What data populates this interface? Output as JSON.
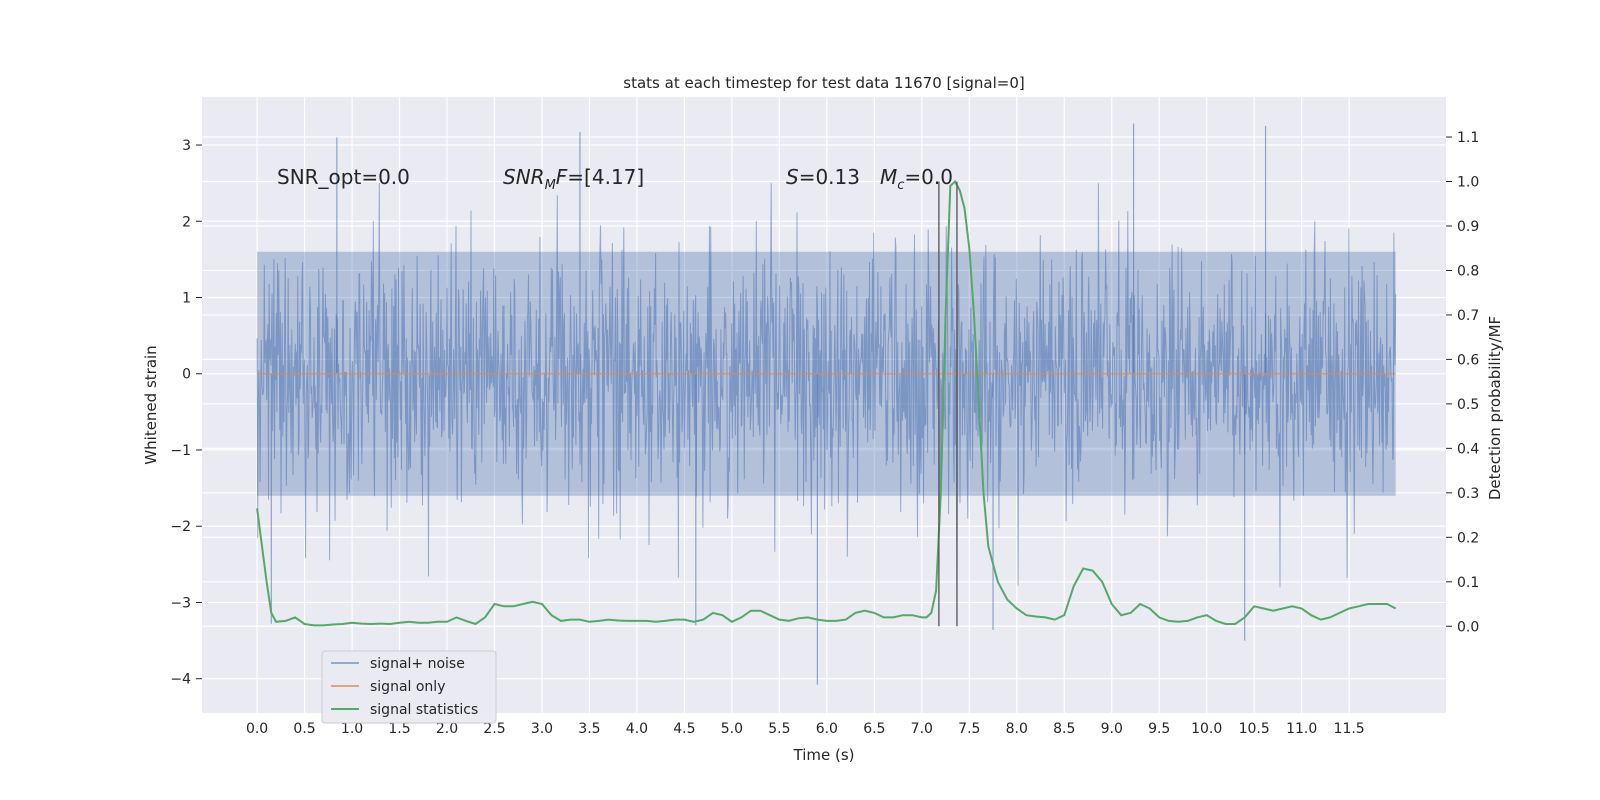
{
  "chart_data": {
    "type": "line",
    "title": "stats at each timestep for test data 11670 [signal=0]",
    "xlabel": "Time (s)",
    "ylabel_left": "Whitened strain",
    "ylabel_right": "Detection probability/MF",
    "xlim": [
      -0.58,
      12.52
    ],
    "ylim_left": [
      -4.45,
      3.63
    ],
    "ylim_right": [
      -0.195,
      1.19
    ],
    "x_ticks": [
      "0.0",
      "0.5",
      "1.0",
      "1.5",
      "2.0",
      "2.5",
      "3.0",
      "3.5",
      "4.0",
      "4.5",
      "5.0",
      "5.5",
      "6.0",
      "6.5",
      "7.0",
      "7.5",
      "8.0",
      "8.5",
      "9.0",
      "9.5",
      "10.0",
      "10.5",
      "11.0",
      "11.5"
    ],
    "y_ticks_left": [
      "3",
      "2",
      "1",
      "0",
      "−1",
      "−2",
      "−3",
      "−4"
    ],
    "y_ticks_right": [
      "1.1",
      "1.0",
      "0.9",
      "0.8",
      "0.7",
      "0.6",
      "0.5",
      "0.4",
      "0.3",
      "0.2",
      "0.1",
      "0.0"
    ],
    "grid": true,
    "legend_position": "lower-left",
    "annotations": {
      "snr_opt": "SNR_opt=0.0",
      "snr_mf": "=[4.17]",
      "s_value": "=0.13",
      "mc_value": "=0.0"
    },
    "vertical_lines_x": [
      7.18,
      7.37
    ],
    "series": [
      {
        "name": "signal+ noise",
        "color": "#4c72b0",
        "axis": "left",
        "kind": "noise",
        "x_range": [
          0.0,
          11.99
        ],
        "typical_band": [
          -1.6,
          1.6
        ],
        "extremes": [
          {
            "x": 0.84,
            "y": 3.1
          },
          {
            "x": 3.4,
            "y": 3.17
          },
          {
            "x": 9.23,
            "y": 3.28
          },
          {
            "x": 10.62,
            "y": 3.25
          },
          {
            "x": 5.9,
            "y": -4.08
          },
          {
            "x": 10.4,
            "y": -3.5
          },
          {
            "x": 7.75,
            "y": -3.36
          },
          {
            "x": 0.15,
            "y": -3.28
          },
          {
            "x": 4.62,
            "y": -3.3
          }
        ]
      },
      {
        "name": "signal only",
        "color": "#dd8452",
        "axis": "left",
        "x": [
          0.0,
          11.99
        ],
        "y": [
          0.0,
          0.0
        ]
      },
      {
        "name": "signal statistics",
        "color": "#55a868",
        "axis": "right",
        "x": [
          0.0,
          0.1,
          0.15,
          0.2,
          0.3,
          0.4,
          0.5,
          0.6,
          0.7,
          0.8,
          0.9,
          1.0,
          1.1,
          1.2,
          1.3,
          1.4,
          1.5,
          1.6,
          1.7,
          1.8,
          1.9,
          2.0,
          2.1,
          2.2,
          2.3,
          2.4,
          2.5,
          2.6,
          2.7,
          2.8,
          2.9,
          3.0,
          3.1,
          3.2,
          3.3,
          3.4,
          3.5,
          3.6,
          3.7,
          3.8,
          3.9,
          4.0,
          4.1,
          4.2,
          4.3,
          4.4,
          4.5,
          4.6,
          4.7,
          4.8,
          4.9,
          5.0,
          5.1,
          5.2,
          5.3,
          5.4,
          5.5,
          5.6,
          5.7,
          5.8,
          5.9,
          6.0,
          6.1,
          6.2,
          6.3,
          6.4,
          6.5,
          6.6,
          6.7,
          6.8,
          6.9,
          7.0,
          7.05,
          7.1,
          7.15,
          7.2,
          7.25,
          7.3,
          7.35,
          7.4,
          7.45,
          7.5,
          7.55,
          7.6,
          7.65,
          7.7,
          7.8,
          7.9,
          8.0,
          8.1,
          8.2,
          8.3,
          8.4,
          8.5,
          8.6,
          8.7,
          8.8,
          8.9,
          9.0,
          9.1,
          9.2,
          9.3,
          9.4,
          9.5,
          9.6,
          9.7,
          9.8,
          9.9,
          10.0,
          10.1,
          10.2,
          10.3,
          10.4,
          10.5,
          10.6,
          10.7,
          10.8,
          10.9,
          11.0,
          11.1,
          11.2,
          11.3,
          11.4,
          11.5,
          11.6,
          11.7,
          11.8,
          11.9,
          11.99
        ],
        "y": [
          0.265,
          0.1,
          0.03,
          0.01,
          0.012,
          0.02,
          0.005,
          0.002,
          0.002,
          0.004,
          0.005,
          0.008,
          0.006,
          0.005,
          0.006,
          0.005,
          0.008,
          0.01,
          0.008,
          0.008,
          0.01,
          0.01,
          0.02,
          0.012,
          0.005,
          0.02,
          0.05,
          0.045,
          0.045,
          0.05,
          0.055,
          0.05,
          0.025,
          0.012,
          0.015,
          0.015,
          0.01,
          0.012,
          0.015,
          0.013,
          0.012,
          0.012,
          0.012,
          0.01,
          0.012,
          0.015,
          0.015,
          0.01,
          0.015,
          0.03,
          0.025,
          0.01,
          0.02,
          0.035,
          0.035,
          0.025,
          0.015,
          0.012,
          0.018,
          0.02,
          0.015,
          0.012,
          0.012,
          0.015,
          0.03,
          0.035,
          0.03,
          0.02,
          0.02,
          0.025,
          0.025,
          0.02,
          0.02,
          0.03,
          0.08,
          0.3,
          0.7,
          0.99,
          1.0,
          0.98,
          0.94,
          0.85,
          0.7,
          0.5,
          0.3,
          0.18,
          0.1,
          0.06,
          0.04,
          0.025,
          0.022,
          0.02,
          0.015,
          0.025,
          0.09,
          0.13,
          0.125,
          0.1,
          0.05,
          0.025,
          0.03,
          0.05,
          0.04,
          0.02,
          0.012,
          0.01,
          0.012,
          0.02,
          0.025,
          0.012,
          0.005,
          0.005,
          0.02,
          0.045,
          0.04,
          0.035,
          0.04,
          0.045,
          0.04,
          0.025,
          0.015,
          0.02,
          0.03,
          0.04,
          0.045,
          0.05,
          0.05,
          0.05,
          0.04
        ]
      }
    ]
  }
}
